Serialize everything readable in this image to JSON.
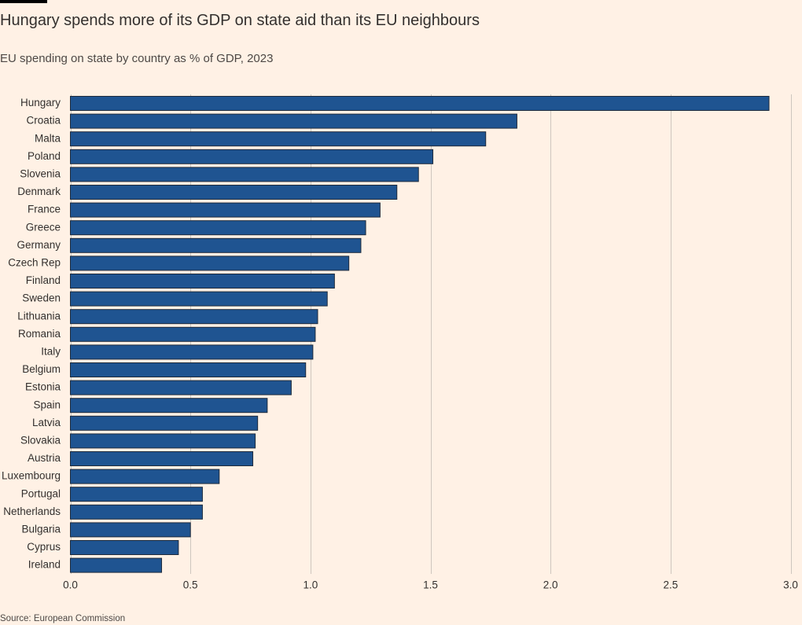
{
  "title": "Hungary spends more of its GDP on state aid than its EU neighbours",
  "subtitle": "EU spending on state by country as % of GDP, 2023",
  "source": "Source: European Commission",
  "colors": {
    "bar": "#1F5491",
    "bar_outline": "#1E2B3C",
    "grid": "#CEC6BE",
    "background": "#FFF1E5",
    "text": "#33302E"
  },
  "chart_data": {
    "type": "bar",
    "orientation": "horizontal",
    "categories": [
      "Hungary",
      "Croatia",
      "Malta",
      "Poland",
      "Slovenia",
      "Denmark",
      "France",
      "Greece",
      "Germany",
      "Czech Rep",
      "Finland",
      "Sweden",
      "Lithuania",
      "Romania",
      "Italy",
      "Belgium",
      "Estonia",
      "Spain",
      "Latvia",
      "Slovakia",
      "Austria",
      "Luxembourg",
      "Portugal",
      "Netherlands",
      "Bulgaria",
      "Cyprus",
      "Ireland"
    ],
    "values": [
      2.91,
      1.86,
      1.73,
      1.51,
      1.45,
      1.36,
      1.29,
      1.23,
      1.21,
      1.16,
      1.1,
      1.07,
      1.03,
      1.02,
      1.01,
      0.98,
      0.92,
      0.82,
      0.78,
      0.77,
      0.76,
      0.62,
      0.55,
      0.55,
      0.5,
      0.45,
      0.38
    ],
    "title": "Hungary spends more of its GDP on state aid than its EU neighbours",
    "subtitle": "EU spending on state by country as % of GDP, 2023",
    "xlabel": "",
    "ylabel": "",
    "xlim": [
      0,
      3.0
    ],
    "xticks": [
      0.0,
      0.5,
      1.0,
      1.5,
      2.0,
      2.5,
      3.0
    ],
    "xtick_labels": [
      "0.0",
      "0.5",
      "1.0",
      "1.5",
      "2.0",
      "2.5",
      "3.0"
    ],
    "grid": true,
    "legend": "none"
  }
}
